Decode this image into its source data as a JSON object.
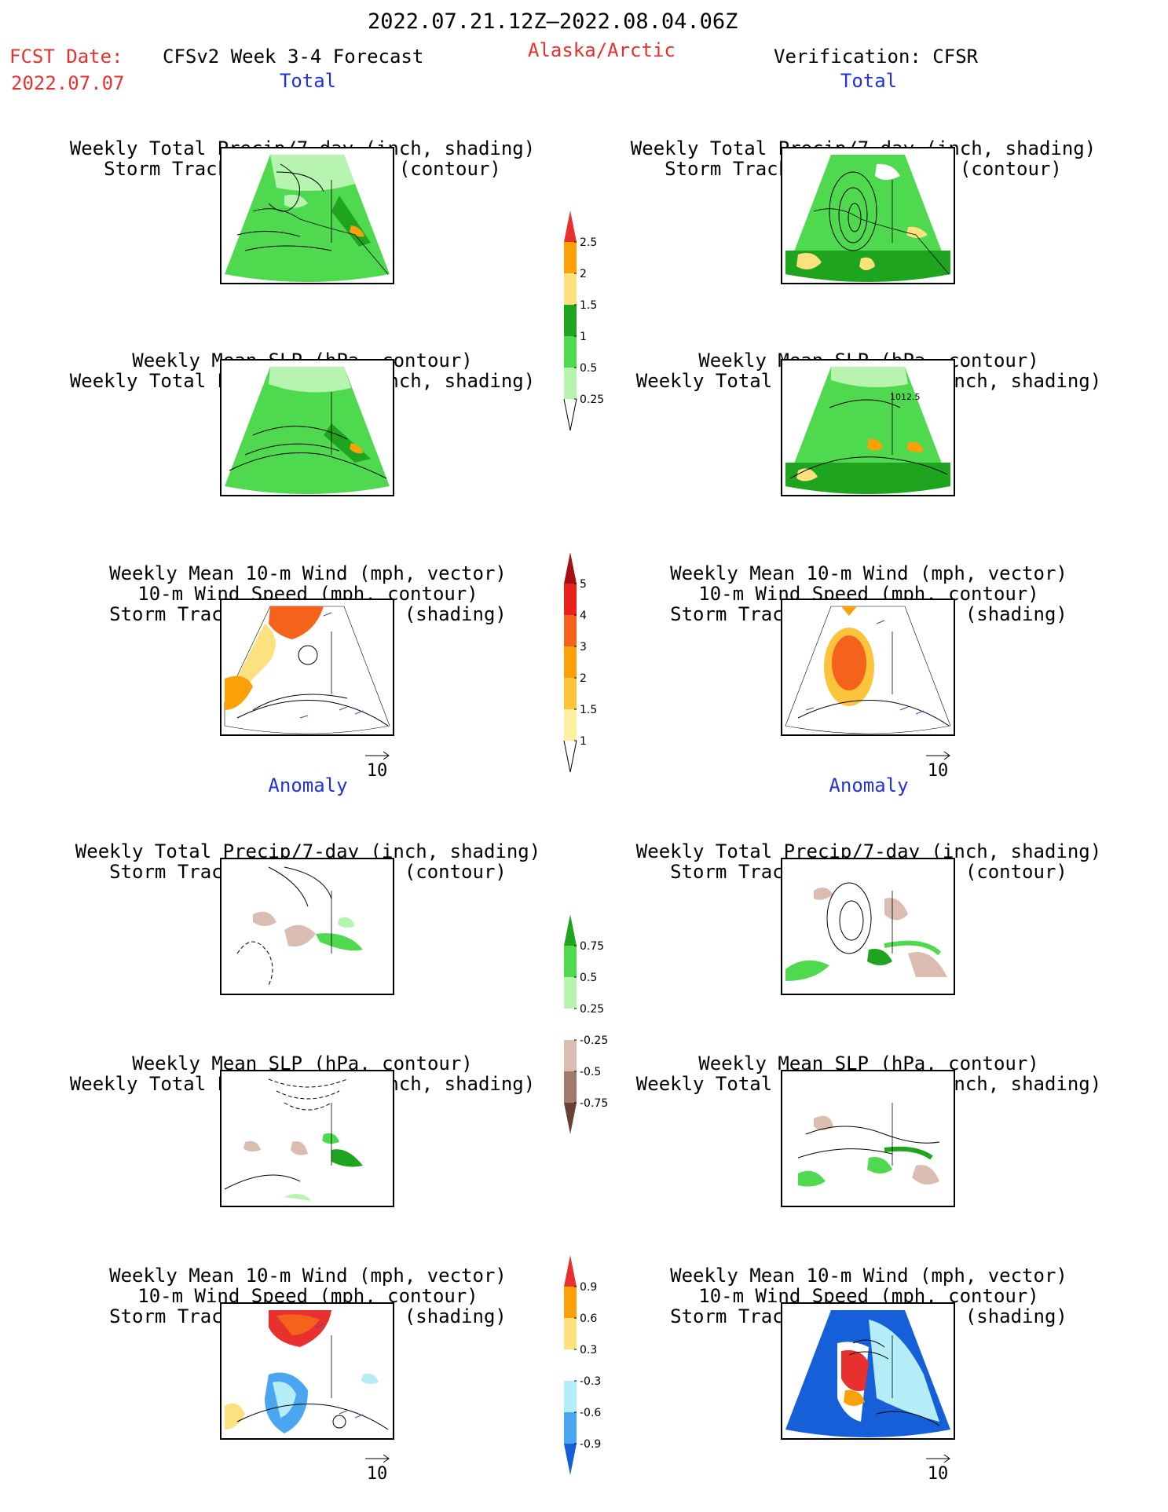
{
  "header": {
    "period": "2022.07.21.12Z—2022.08.04.06Z",
    "fcst_label": "FCST Date:",
    "fcst_date": "2022.07.07",
    "model": "CFSv2 Week 3-4 Forecast",
    "region": "Alaska/Arctic",
    "verification": "Verification: CFSR"
  },
  "sections": {
    "total": "Total",
    "anomaly": "Anomaly"
  },
  "panel_titles": {
    "precip": [
      "Weekly Total Precip/7-day (inch, shading)",
      "Storm Track Density/7-day (contour)"
    ],
    "slp": [
      "Weekly Mean SLP (hPa, contour)",
      "Weekly Total Precip/7-day (inch, shading)"
    ],
    "wind": [
      "Weekly Mean 10-m Wind (mph, vector)",
      "10-m Wind Speed (mph, contour)",
      "Storm Track Density/7-day (shading)"
    ]
  },
  "contour_label": "1012.5",
  "vector_ref": "10",
  "colorbars": {
    "precip_total": {
      "labels": [
        "2.5",
        "2",
        "1.5",
        "1",
        "0.5",
        "0.25"
      ],
      "colors": [
        "#e8312f",
        "#fba007",
        "#fde17e",
        "#1fa41f",
        "#4fd94f",
        "#b6f4b0"
      ]
    },
    "storm_total": {
      "labels": [
        "5",
        "4",
        "3",
        "2",
        "1.5",
        "1"
      ],
      "colors": [
        "#a51010",
        "#e8231b",
        "#f5621c",
        "#fba007",
        "#fbc43a",
        "#fdf0a0"
      ]
    },
    "precip_anom": {
      "labels": [
        "0.75",
        "0.5",
        "0.25",
        "-0.25",
        "-0.5",
        "-0.75"
      ],
      "colors": [
        "#1fa41f",
        "#4fd94f",
        "#b6f4b0",
        "#ffffff",
        "#dbbcb0",
        "#a07a6a",
        "#6a4032"
      ]
    },
    "storm_anom": {
      "labels": [
        "0.9",
        "0.6",
        "0.3",
        "-0.3",
        "-0.6",
        "-0.9"
      ],
      "colors": [
        "#e8312f",
        "#fba007",
        "#fde17e",
        "#ffffff",
        "#b4ecf8",
        "#4aa6f0",
        "#1560d8"
      ]
    }
  }
}
